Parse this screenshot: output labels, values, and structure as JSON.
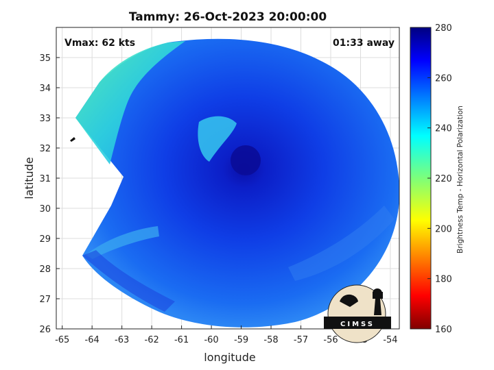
{
  "chart_data": {
    "type": "heatmap",
    "title": "Tammy: 26-Oct-2023 20:00:00",
    "xlabel": "longitude",
    "ylabel": "latitude",
    "xlim": [
      -65.2,
      -53.7
    ],
    "ylim": [
      26,
      36
    ],
    "xticks": [
      "-65",
      "-64",
      "-63",
      "-62",
      "-61",
      "-60",
      "-59",
      "-58",
      "-57",
      "-56",
      "-55",
      "-54"
    ],
    "yticks": [
      "26",
      "27",
      "28",
      "29",
      "30",
      "31",
      "32",
      "33",
      "34",
      "35"
    ],
    "xtick_values": [
      -65,
      -64,
      -63,
      -62,
      -61,
      -60,
      -59,
      -58,
      -57,
      -56,
      -55,
      -54
    ],
    "ytick_values": [
      26,
      27,
      28,
      29,
      30,
      31,
      32,
      33,
      34,
      35
    ],
    "grid": true,
    "annotations": {
      "vmax": "Vmax: 62 kts",
      "time_away": "01:33 away"
    },
    "colorbar": {
      "label": "Brightness Temp - Horizontal Polarization",
      "range": [
        160,
        280
      ],
      "ticks": [
        "280",
        "260",
        "240",
        "220",
        "200",
        "180",
        "160"
      ],
      "tick_values": [
        280,
        260,
        240,
        220,
        200,
        180,
        160
      ],
      "colormap": "jet"
    },
    "storm_center": {
      "lon": -59.2,
      "lat": 31.4
    },
    "logo_text": "CIMSS"
  }
}
